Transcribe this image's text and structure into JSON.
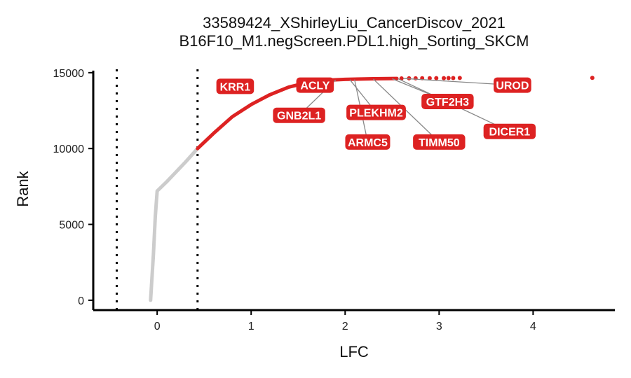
{
  "chart_data": {
    "type": "scatter",
    "title_lines": [
      "33589424_XShirleyLiu_CancerDiscov_2021",
      "B16F10_M1.negScreen.PDL1.high_Sorting_SKCM"
    ],
    "xlabel": "LFC",
    "ylabel": "Rank",
    "xlim": [
      -0.68,
      4.87
    ],
    "ylim": [
      -650,
      15500
    ],
    "x_ticks": [
      0,
      1,
      2,
      3,
      4
    ],
    "y_ticks": [
      0,
      5000,
      10000,
      15000
    ],
    "thresholds": [
      -0.43,
      0.43
    ],
    "colors": {
      "background": "#cccccc",
      "highlight": "#dd2222",
      "label_bg": "#dd2222",
      "label_text": "#ffffff",
      "connector": "#888888"
    },
    "background_curve": [
      [
        -0.07,
        0
      ],
      [
        -0.06,
        1000
      ],
      [
        -0.04,
        3000
      ],
      [
        -0.02,
        5500
      ],
      [
        0.0,
        7200
      ],
      [
        0.1,
        7800
      ],
      [
        0.2,
        8450
      ],
      [
        0.3,
        9100
      ],
      [
        0.43,
        10000
      ]
    ],
    "highlight_curve": [
      [
        0.43,
        10000
      ],
      [
        0.6,
        11000
      ],
      [
        0.8,
        12100
      ],
      [
        1.0,
        12900
      ],
      [
        1.2,
        13550
      ],
      [
        1.4,
        14050
      ],
      [
        1.6,
        14350
      ],
      [
        1.8,
        14500
      ],
      [
        2.0,
        14560
      ],
      [
        2.3,
        14600
      ],
      [
        2.55,
        14620
      ]
    ],
    "tail_points": [
      [
        2.6,
        14625
      ],
      [
        2.68,
        14628
      ],
      [
        2.75,
        14630
      ],
      [
        2.82,
        14633
      ],
      [
        2.9,
        14636
      ],
      [
        2.97,
        14640
      ],
      [
        3.05,
        14642
      ],
      [
        3.1,
        14645
      ],
      [
        3.15,
        14648
      ],
      [
        3.22,
        14650
      ],
      [
        4.63,
        14660
      ]
    ],
    "labels": [
      {
        "gene": "KRR1",
        "x": 0.7,
        "y": 14100,
        "label_x": 0.83,
        "label_y": 14100
      },
      {
        "gene": "ACLY",
        "x": 1.8,
        "y": 14500,
        "label_x": 1.68,
        "label_y": 14180
      },
      {
        "gene": "GNB2L1",
        "x": 1.9,
        "y": 14520,
        "label_x": 1.51,
        "label_y": 12190
      },
      {
        "gene": "PLEKHM2",
        "x": 2.05,
        "y": 14540,
        "label_x": 2.33,
        "label_y": 12380
      },
      {
        "gene": "ARMC5",
        "x": 2.1,
        "y": 14550,
        "label_x": 2.24,
        "label_y": 10430
      },
      {
        "gene": "TIMM50",
        "x": 2.3,
        "y": 14580,
        "label_x": 3.0,
        "label_y": 10430
      },
      {
        "gene": "GTF2H3",
        "x": 2.5,
        "y": 14600,
        "label_x": 3.09,
        "label_y": 13100
      },
      {
        "gene": "DICER1",
        "x": 2.56,
        "y": 14610,
        "label_x": 3.75,
        "label_y": 11130
      },
      {
        "gene": "UROD",
        "x": 2.62,
        "y": 14620,
        "label_x": 3.78,
        "label_y": 14180
      }
    ]
  }
}
